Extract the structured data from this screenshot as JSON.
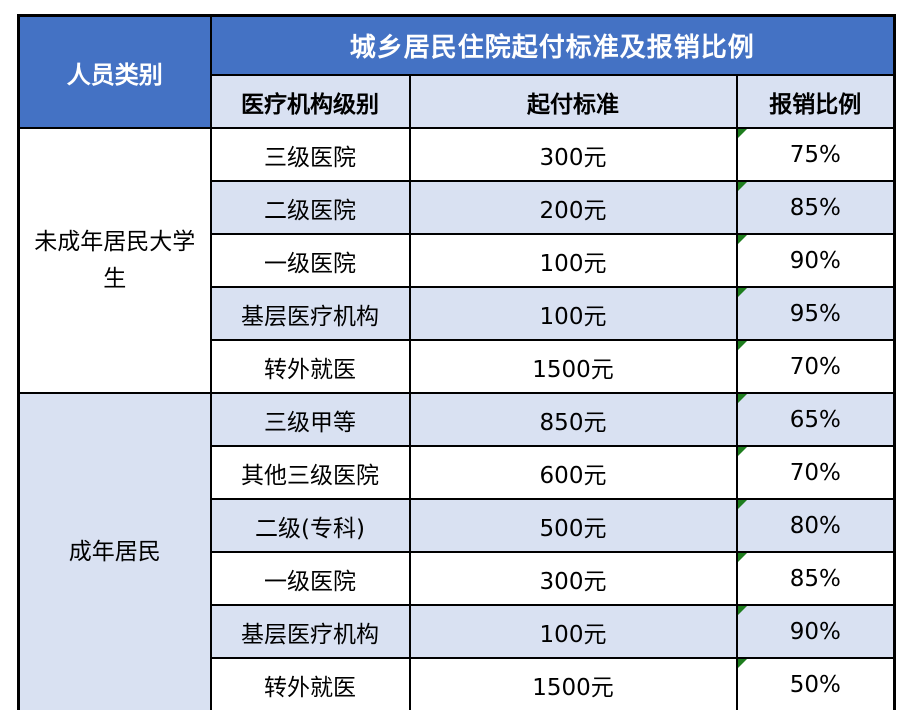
{
  "colors": {
    "header_blue": "#4472C4",
    "row_lavender": "#D9E1F2",
    "row_white": "#FFFFFF",
    "border_black": "#000000",
    "error_indicator_green": "#1E7D1E",
    "header_text": "#FFFFFF",
    "body_text": "#000000"
  },
  "table": {
    "person_category_header": "人员类别",
    "main_header": "城乡居民住院起付标准及报销比例",
    "columns": [
      "医疗机构级别",
      "起付标准",
      "报销比例"
    ],
    "groups": [
      {
        "category": "未成年居民大学生",
        "rows": [
          {
            "level": "三级医院",
            "deductible": "300元",
            "ratio": "75%"
          },
          {
            "level": "二级医院",
            "deductible": "200元",
            "ratio": "85%"
          },
          {
            "level": "一级医院",
            "deductible": "100元",
            "ratio": "90%"
          },
          {
            "level": "基层医疗机构",
            "deductible": "100元",
            "ratio": "95%"
          },
          {
            "level": "转外就医",
            "deductible": "1500元",
            "ratio": "70%"
          }
        ]
      },
      {
        "category": "成年居民",
        "rows": [
          {
            "level": "三级甲等",
            "deductible": "850元",
            "ratio": "65%"
          },
          {
            "level": "其他三级医院",
            "deductible": "600元",
            "ratio": "70%"
          },
          {
            "level": "二级(专科)",
            "deductible": "500元",
            "ratio": "80%"
          },
          {
            "level": "一级医院",
            "deductible": "300元",
            "ratio": "85%"
          },
          {
            "level": "基层医疗机构",
            "deductible": "100元",
            "ratio": "90%"
          },
          {
            "level": "转外就医",
            "deductible": "1500元",
            "ratio": "50%"
          }
        ]
      }
    ]
  }
}
